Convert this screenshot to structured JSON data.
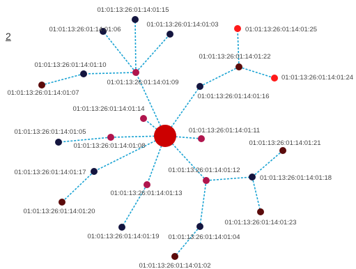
{
  "page_indicator": "2",
  "colors": {
    "edge": "#1aa3d3",
    "hub": "#cc0000",
    "crimson": "#b0154d",
    "navy": "#14153f",
    "maroon": "#5b0b0b",
    "red": "#ff1a1a"
  },
  "nodes": [
    {
      "id": "hub",
      "label": "",
      "color": "hub"
    },
    {
      "id": "n09",
      "label": "01:01:13:26:01:14:01:09",
      "color": "crimson"
    },
    {
      "id": "n15",
      "label": "01:01:13:26:01:14:01:15",
      "color": "navy"
    },
    {
      "id": "n06",
      "label": "01:01:13:26:01:14:01:06",
      "color": "navy"
    },
    {
      "id": "n03",
      "label": "01:01:13:26:01:14:01:03",
      "color": "navy"
    },
    {
      "id": "n10",
      "label": "01:01:13:26:01:14:01:10",
      "color": "navy"
    },
    {
      "id": "n07",
      "label": "01:01:13:26:01:14:01:07",
      "color": "maroon"
    },
    {
      "id": "n16",
      "label": "01:01:13:26:01:14:01:16",
      "color": "navy"
    },
    {
      "id": "n22",
      "label": "01:01:13:26:01:14:01:22",
      "color": "maroon"
    },
    {
      "id": "n25",
      "label": "01:01:13:26:01:14:01:25",
      "color": "red"
    },
    {
      "id": "n24",
      "label": "01:01:13:26:01:14:01:24",
      "color": "red"
    },
    {
      "id": "n14",
      "label": "01:01:13:26:01:14:01:14",
      "color": "crimson"
    },
    {
      "id": "n08",
      "label": "01:01:13:26:01:14:01:08",
      "color": "crimson"
    },
    {
      "id": "n05",
      "label": "01:01:13:26:01:14:01:05",
      "color": "navy"
    },
    {
      "id": "n11",
      "label": "01:01:13:26:01:14:01:11",
      "color": "crimson"
    },
    {
      "id": "n17",
      "label": "01:01:13:26:01:14:01:17",
      "color": "navy"
    },
    {
      "id": "n20",
      "label": "01:01:13:26:01:14:01:20",
      "color": "maroon"
    },
    {
      "id": "n13",
      "label": "01:01:13:26:01:14:01:13",
      "color": "crimson"
    },
    {
      "id": "n19",
      "label": "01:01:13:26:01:14:01:19",
      "color": "navy"
    },
    {
      "id": "n12",
      "label": "01:01:13:26:01:14:01:12",
      "color": "crimson"
    },
    {
      "id": "n04",
      "label": "01:01:13:26:01:14:01:04",
      "color": "navy"
    },
    {
      "id": "n02",
      "label": "01:01:13:26:01:14:01:02",
      "color": "maroon"
    },
    {
      "id": "n18",
      "label": "01:01:13:26:01:14:01:18",
      "color": "navy"
    },
    {
      "id": "n21",
      "label": "01:01:13:26:01:14:01:21",
      "color": "maroon"
    },
    {
      "id": "n23",
      "label": "01:01:13:26:01:14:01:23",
      "color": "maroon"
    }
  ],
  "edges": [
    [
      "hub",
      "n09"
    ],
    [
      "n09",
      "n15"
    ],
    [
      "n09",
      "n06"
    ],
    [
      "n09",
      "n03"
    ],
    [
      "n09",
      "n10"
    ],
    [
      "n10",
      "n07"
    ],
    [
      "hub",
      "n16"
    ],
    [
      "n16",
      "n22"
    ],
    [
      "n22",
      "n25"
    ],
    [
      "n22",
      "n24"
    ],
    [
      "hub",
      "n14"
    ],
    [
      "hub",
      "n08"
    ],
    [
      "n08",
      "n05"
    ],
    [
      "hub",
      "n11"
    ],
    [
      "hub",
      "n17"
    ],
    [
      "n17",
      "n20"
    ],
    [
      "hub",
      "n13"
    ],
    [
      "n13",
      "n19"
    ],
    [
      "hub",
      "n12"
    ],
    [
      "n12",
      "n04"
    ],
    [
      "n04",
      "n02"
    ],
    [
      "n12",
      "n18"
    ],
    [
      "n18",
      "n21"
    ],
    [
      "n18",
      "n23"
    ]
  ]
}
